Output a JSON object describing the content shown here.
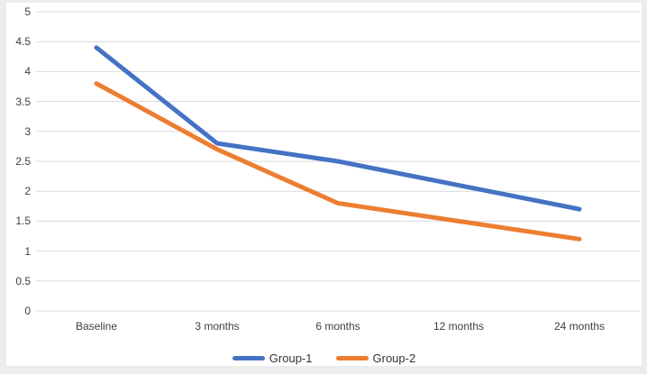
{
  "chart_data": {
    "type": "line",
    "title": "",
    "xlabel": "",
    "ylabel": "",
    "categories": [
      "Baseline",
      "3 months",
      "6 months",
      "12 months",
      "24 months"
    ],
    "series": [
      {
        "name": "Group-1",
        "color": "#4472C4",
        "values": [
          4.4,
          2.8,
          2.5,
          2.1,
          1.7
        ]
      },
      {
        "name": "Group-2",
        "color": "#ED7D31",
        "values": [
          3.8,
          2.7,
          1.8,
          1.5,
          1.2
        ]
      }
    ],
    "ylim": [
      0,
      5
    ],
    "ytick_step": 0.5,
    "yticks": [
      "5",
      "4.5",
      "4",
      "3.5",
      "3",
      "2.5",
      "2",
      "1.5",
      "1",
      "0.5",
      "0"
    ],
    "grid": "horizontal-only",
    "gridline_color": "#D9D9D9",
    "plot_background": "#FFFFFF",
    "frame_background": "#ECECEC",
    "text_color": "#404040",
    "legend_position": "bottom"
  }
}
